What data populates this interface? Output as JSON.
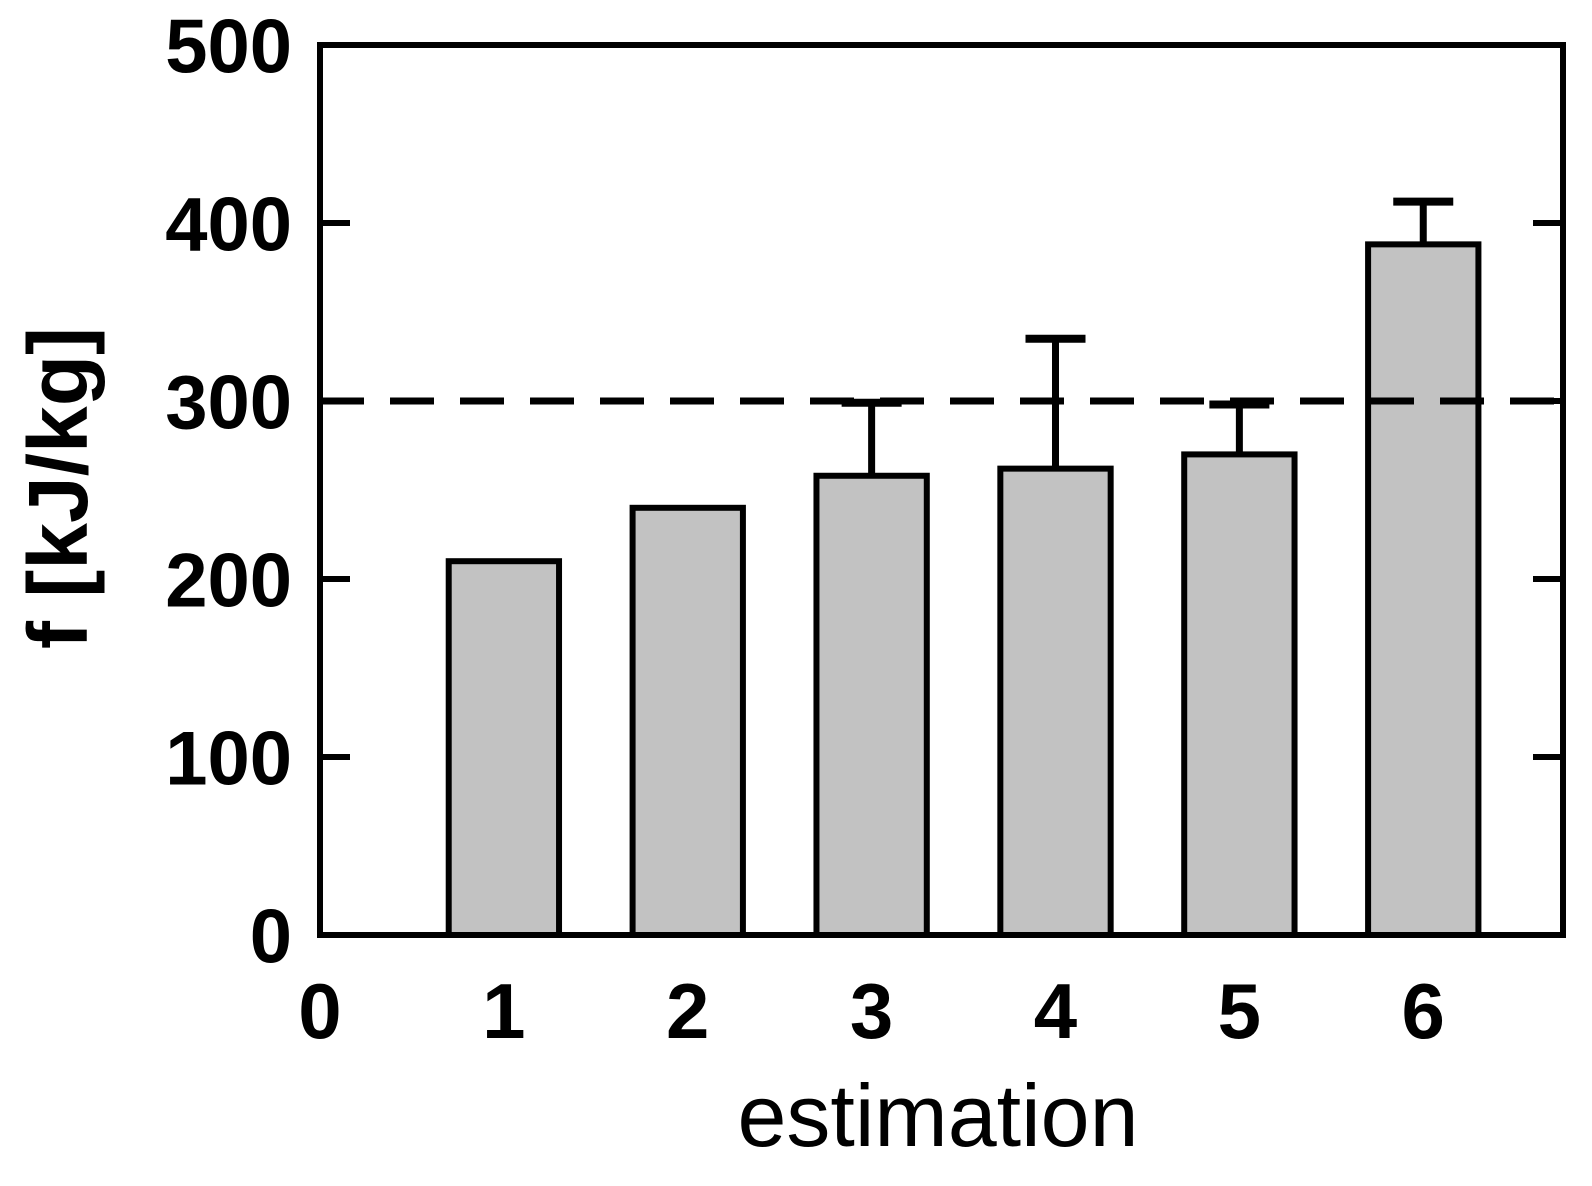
{
  "chart_data": {
    "type": "bar",
    "title": "",
    "xlabel": "estimation",
    "ylabel": "f [kJ/kg]",
    "categories": [
      1,
      2,
      3,
      4,
      5,
      6
    ],
    "values": [
      210,
      240,
      258,
      262,
      270,
      388
    ],
    "errors_plus": [
      0,
      0,
      41,
      73,
      28,
      24
    ],
    "reference_line_y": 300,
    "reference_line_style": "dashed",
    "xlim": [
      0,
      6.76
    ],
    "ylim": [
      0,
      500
    ],
    "xticks": [
      0,
      1,
      2,
      3,
      4,
      5,
      6
    ],
    "yticks": [
      0,
      100,
      200,
      300,
      400,
      500
    ],
    "bar_width_units": 0.6,
    "legend": "none",
    "grid": "off",
    "colors": {
      "bar_fill": "#c2c2c2",
      "bar_stroke": "#000000",
      "axis": "#000000",
      "text": "#000000",
      "background": "#ffffff"
    }
  }
}
